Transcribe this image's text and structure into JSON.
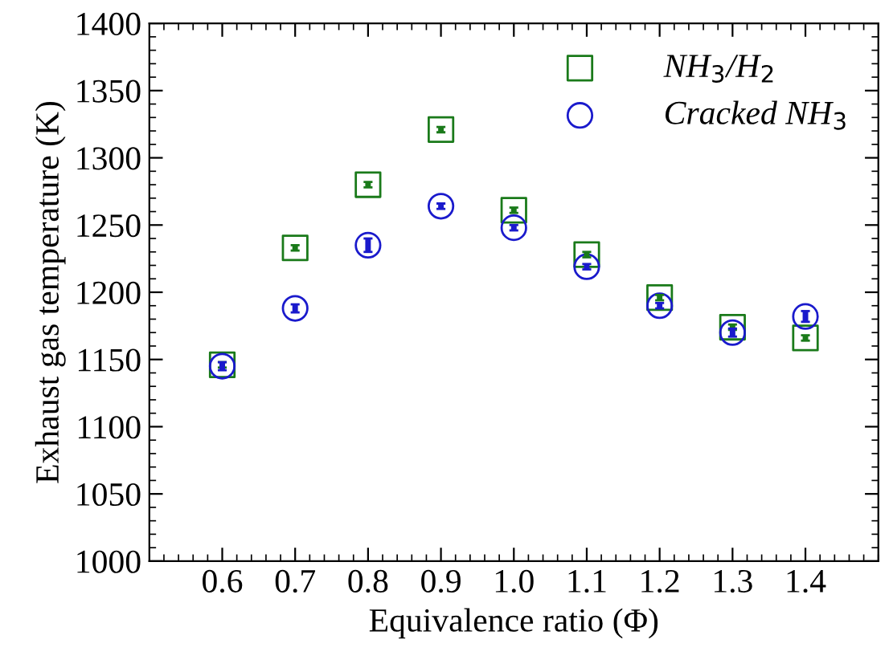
{
  "chart_data": {
    "type": "scatter",
    "xlabel": "Equivalence ratio (Φ)",
    "ylabel": "Exhaust gas temperature (K)",
    "x": [
      0.6,
      0.7,
      0.8,
      0.9,
      1.0,
      1.1,
      1.2,
      1.3,
      1.4
    ],
    "series": [
      {
        "name": "NH$_{3}$/H$_{2}$",
        "color": "#1a7a1a",
        "marker": "square",
        "values": [
          1146,
          1233,
          1280,
          1321,
          1261,
          1228,
          1196,
          1174,
          1166
        ],
        "errors": [
          2,
          2,
          2,
          2,
          2,
          2,
          2,
          2,
          2
        ]
      },
      {
        "name": "Cracked NH$_{3}$",
        "color": "#1a1acc",
        "marker": "circle",
        "values": [
          1145,
          1188,
          1235,
          1264,
          1248,
          1219,
          1190,
          1170,
          1182
        ],
        "errors": [
          3,
          3,
          5,
          2,
          2,
          2,
          2,
          3,
          4
        ]
      }
    ],
    "xlim": [
      0.5,
      1.5
    ],
    "xticks": [
      0.6,
      0.7,
      0.8,
      0.9,
      {
        "value": 1.0,
        "label": "1.0"
      },
      1.1,
      1.2,
      1.3,
      1.4
    ],
    "ylim": [
      1000,
      1400
    ],
    "yticks": [
      1000,
      1050,
      1100,
      1150,
      1200,
      1250,
      1300,
      1350,
      1400
    ],
    "legend": "top right",
    "grid": false
  }
}
